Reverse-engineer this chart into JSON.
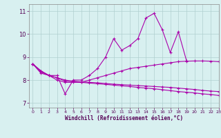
{
  "x": [
    0,
    1,
    2,
    3,
    4,
    5,
    6,
    7,
    8,
    9,
    10,
    11,
    12,
    13,
    14,
    15,
    16,
    17,
    18,
    19,
    20,
    21,
    22,
    23
  ],
  "line1": [
    8.7,
    8.4,
    8.2,
    8.2,
    7.4,
    8.0,
    8.0,
    8.2,
    8.5,
    9.0,
    9.8,
    9.3,
    9.5,
    9.8,
    10.7,
    10.9,
    10.2,
    9.2,
    10.1,
    8.85,
    null,
    null,
    null,
    null
  ],
  "line2": [
    8.7,
    8.35,
    8.2,
    8.1,
    7.95,
    7.93,
    7.9,
    7.87,
    7.84,
    7.81,
    7.78,
    7.75,
    7.72,
    7.68,
    7.65,
    7.62,
    7.58,
    7.54,
    7.5,
    7.47,
    7.44,
    7.4,
    7.37,
    7.33
  ],
  "line3": [
    8.7,
    8.3,
    8.2,
    8.1,
    8.0,
    7.95,
    7.92,
    7.9,
    7.88,
    7.85,
    7.82,
    7.8,
    7.78,
    7.76,
    7.74,
    7.72,
    7.7,
    7.68,
    7.65,
    7.62,
    7.59,
    7.55,
    7.52,
    7.5
  ],
  "line4": [
    8.7,
    8.4,
    8.2,
    8.0,
    7.9,
    7.9,
    7.9,
    8.0,
    8.1,
    8.2,
    8.3,
    8.4,
    8.5,
    8.55,
    8.6,
    8.65,
    8.7,
    8.75,
    8.8,
    8.82,
    8.83,
    8.83,
    8.82,
    8.8
  ],
  "color": "#aa00aa",
  "bgcolor": "#d8f0f0",
  "grid_color": "#b0d0d0",
  "xlabel": "Windchill (Refroidissement éolien,°C)",
  "ylim": [
    6.8,
    11.3
  ],
  "xlim": [
    -0.5,
    23
  ],
  "yticks": [
    7,
    8,
    9,
    10,
    11
  ],
  "xticks": [
    0,
    1,
    2,
    3,
    4,
    5,
    6,
    7,
    8,
    9,
    10,
    11,
    12,
    13,
    14,
    15,
    16,
    17,
    18,
    19,
    20,
    21,
    22,
    23
  ]
}
